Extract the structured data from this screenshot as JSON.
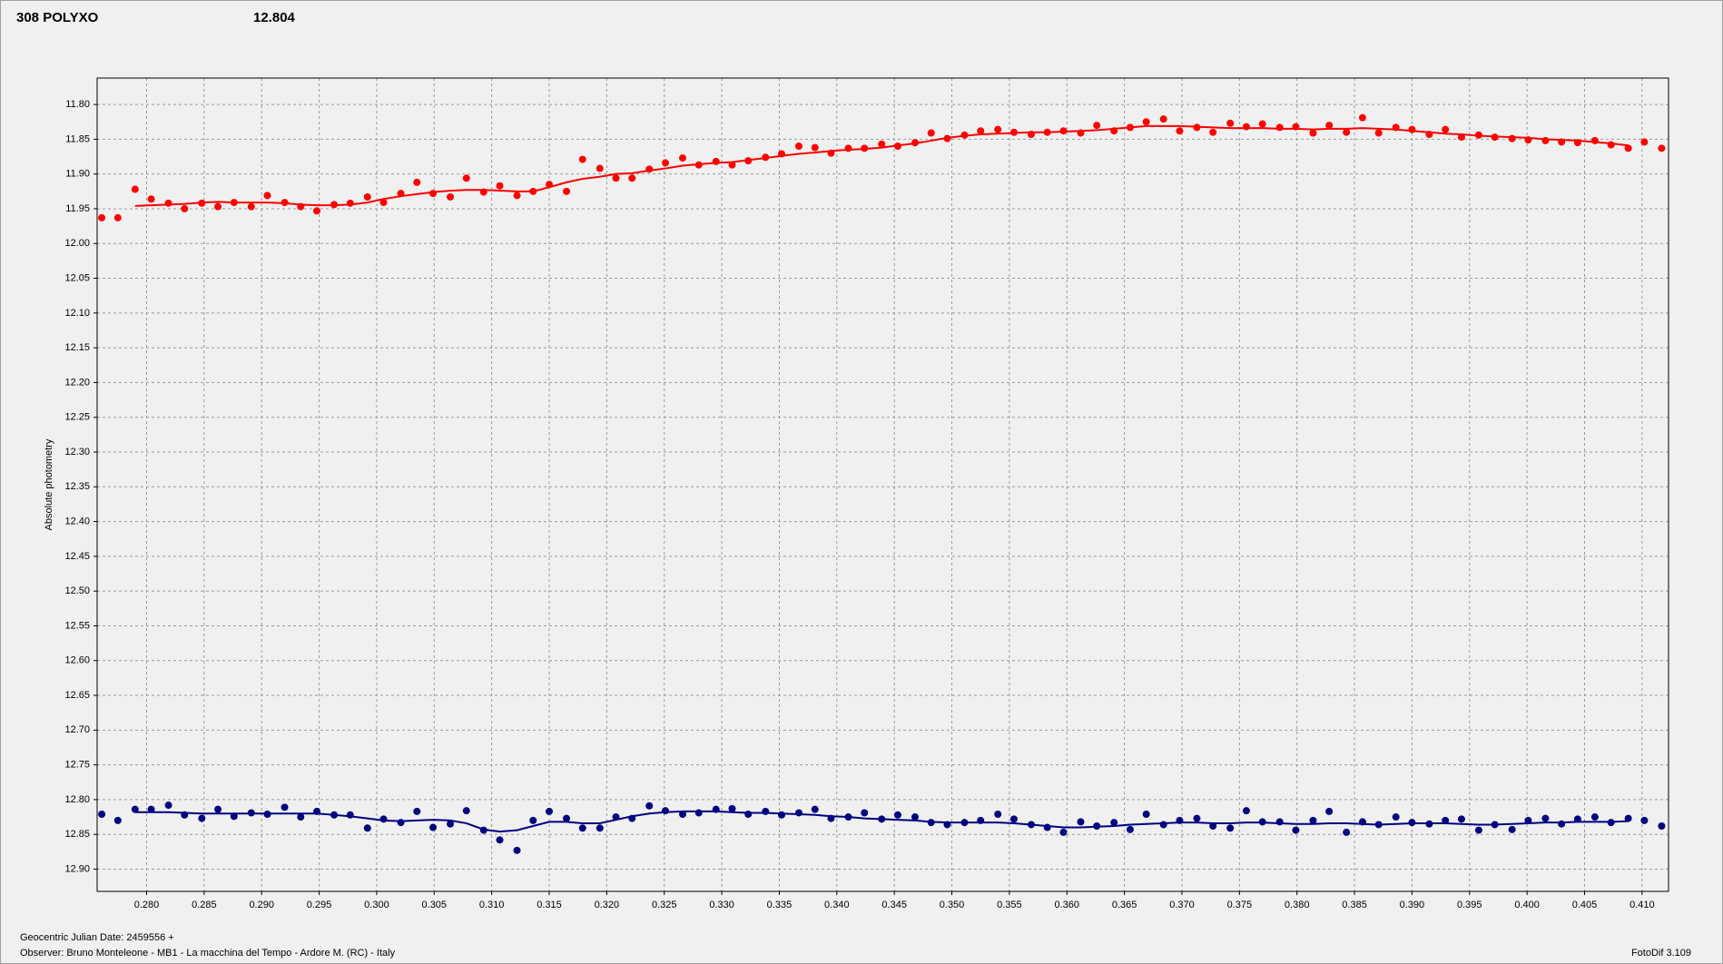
{
  "chart_data": {
    "type": "scatter",
    "title": "308 POLYXO",
    "subtitle": "12.804",
    "ylabel": "Absolute photometry",
    "xlabel": "Geocentric Julian Date: 2459556 +",
    "footer": "Observer: Bruno Monteleone - MB1 - La macchina del Tempo - Ardore M. (RC) - Italy",
    "software": "FotoDif 3.109",
    "title_color": "#ff0000",
    "subtitle_color": "#000080",
    "y_inverted": true,
    "grid": true,
    "xlim": [
      0.2757,
      0.4123
    ],
    "ylim": [
      11.762,
      12.932
    ],
    "xticks": [
      {
        "value": 0.28,
        "label": "0.280"
      },
      {
        "value": 0.285,
        "label": "0.285"
      },
      {
        "value": 0.29,
        "label": "0.290"
      },
      {
        "value": 0.295,
        "label": "0.295"
      },
      {
        "value": 0.3,
        "label": "0.300"
      },
      {
        "value": 0.305,
        "label": "0.305"
      },
      {
        "value": 0.31,
        "label": "0.310"
      },
      {
        "value": 0.315,
        "label": "0.315"
      },
      {
        "value": 0.32,
        "label": "0.320"
      },
      {
        "value": 0.325,
        "label": "0.325"
      },
      {
        "value": 0.33,
        "label": "0.330"
      },
      {
        "value": 0.335,
        "label": "0.335"
      },
      {
        "value": 0.34,
        "label": "0.340"
      },
      {
        "value": 0.345,
        "label": "0.345"
      },
      {
        "value": 0.35,
        "label": "0.350"
      },
      {
        "value": 0.355,
        "label": "0.355"
      },
      {
        "value": 0.36,
        "label": "0.360"
      },
      {
        "value": 0.365,
        "label": "0.365"
      },
      {
        "value": 0.37,
        "label": "0.370"
      },
      {
        "value": 0.375,
        "label": "0.375"
      },
      {
        "value": 0.38,
        "label": "0.380"
      },
      {
        "value": 0.385,
        "label": "0.385"
      },
      {
        "value": 0.39,
        "label": "0.390"
      },
      {
        "value": 0.395,
        "label": "0.395"
      },
      {
        "value": 0.4,
        "label": "0.400"
      },
      {
        "value": 0.405,
        "label": "0.405"
      },
      {
        "value": 0.41,
        "label": "0.410"
      }
    ],
    "yticks": [
      {
        "value": 11.8,
        "label": "11.80"
      },
      {
        "value": 11.85,
        "label": "11.85"
      },
      {
        "value": 11.9,
        "label": "11.90"
      },
      {
        "value": 11.95,
        "label": "11.95"
      },
      {
        "value": 12.0,
        "label": "12.00"
      },
      {
        "value": 12.05,
        "label": "12.05"
      },
      {
        "value": 12.1,
        "label": "12.10"
      },
      {
        "value": 12.15,
        "label": "12.15"
      },
      {
        "value": 12.2,
        "label": "12.20"
      },
      {
        "value": 12.25,
        "label": "12.25"
      },
      {
        "value": 12.3,
        "label": "12.30"
      },
      {
        "value": 12.35,
        "label": "12.35"
      },
      {
        "value": 12.4,
        "label": "12.40"
      },
      {
        "value": 12.45,
        "label": "12.45"
      },
      {
        "value": 12.5,
        "label": "12.50"
      },
      {
        "value": 12.55,
        "label": "12.55"
      },
      {
        "value": 12.6,
        "label": "12.60"
      },
      {
        "value": 12.65,
        "label": "12.65"
      },
      {
        "value": 12.7,
        "label": "12.70"
      },
      {
        "value": 12.75,
        "label": "12.75"
      },
      {
        "value": 12.8,
        "label": "12.80"
      },
      {
        "value": 12.85,
        "label": "12.85"
      },
      {
        "value": 12.9,
        "label": "12.90"
      }
    ],
    "x": [
      0.2761,
      0.2775,
      0.279,
      0.2804,
      0.2819,
      0.2833,
      0.2848,
      0.2862,
      0.2876,
      0.2891,
      0.2905,
      0.292,
      0.2934,
      0.2948,
      0.2963,
      0.2977,
      0.2992,
      0.3006,
      0.3021,
      0.3035,
      0.3049,
      0.3064,
      0.3078,
      0.3093,
      0.3107,
      0.3122,
      0.3136,
      0.315,
      0.3165,
      0.3179,
      0.3194,
      0.3208,
      0.3222,
      0.3237,
      0.3251,
      0.3266,
      0.328,
      0.3295,
      0.3309,
      0.3323,
      0.3338,
      0.3352,
      0.3367,
      0.3381,
      0.3395,
      0.341,
      0.3424,
      0.3439,
      0.3453,
      0.3468,
      0.3482,
      0.3496,
      0.3511,
      0.3525,
      0.354,
      0.3554,
      0.3569,
      0.3583,
      0.3597,
      0.3612,
      0.3626,
      0.3641,
      0.3655,
      0.3669,
      0.3684,
      0.3698,
      0.3713,
      0.3727,
      0.3742,
      0.3756,
      0.377,
      0.3785,
      0.3799,
      0.3814,
      0.3828,
      0.3843,
      0.3857,
      0.3871,
      0.3886,
      0.39,
      0.3915,
      0.3929,
      0.3943,
      0.3958,
      0.3972,
      0.3987,
      0.4001,
      0.4016,
      0.403,
      0.4044,
      0.4059,
      0.4073,
      0.4088,
      0.4102,
      0.4117
    ],
    "series": [
      {
        "color": "#ff0000",
        "values": [
          11.963,
          11.963,
          11.922,
          11.936,
          11.942,
          11.95,
          11.942,
          11.947,
          11.941,
          11.947,
          11.931,
          11.941,
          11.947,
          11.953,
          11.944,
          11.942,
          11.933,
          11.941,
          11.928,
          11.912,
          11.928,
          11.933,
          11.906,
          11.926,
          11.917,
          11.931,
          11.925,
          11.915,
          11.925,
          11.879,
          11.892,
          11.906,
          11.906,
          11.893,
          11.884,
          11.877,
          11.887,
          11.882,
          11.887,
          11.881,
          11.876,
          11.871,
          11.86,
          11.862,
          11.87,
          11.863,
          11.863,
          11.857,
          11.86,
          11.855,
          11.841,
          11.849,
          11.844,
          11.838,
          11.836,
          11.84,
          11.843,
          11.84,
          11.838,
          11.841,
          11.83,
          11.838,
          11.833,
          11.825,
          11.821,
          11.838,
          11.833,
          11.84,
          11.827,
          11.832,
          11.828,
          11.833,
          11.832,
          11.841,
          11.83,
          11.84,
          11.819,
          11.841,
          11.833,
          11.836,
          11.843,
          11.836,
          11.847,
          11.844,
          11.847,
          11.849,
          11.851,
          11.852,
          11.854,
          11.855,
          11.852,
          11.858,
          11.863,
          11.854,
          11.863
        ],
        "fit": [
          null,
          null,
          11.946,
          11.945,
          11.944,
          11.943,
          11.941,
          11.94,
          11.941,
          11.941,
          11.941,
          11.942,
          11.944,
          11.945,
          11.945,
          11.944,
          11.941,
          11.936,
          11.932,
          11.929,
          11.926,
          11.924,
          11.923,
          11.923,
          11.924,
          11.925,
          11.925,
          11.919,
          11.912,
          11.907,
          11.904,
          11.9,
          11.899,
          11.895,
          11.892,
          11.888,
          11.886,
          11.884,
          11.883,
          11.88,
          11.877,
          11.874,
          11.871,
          11.869,
          11.867,
          11.865,
          11.864,
          11.862,
          11.859,
          11.856,
          11.852,
          11.848,
          11.845,
          11.843,
          11.842,
          11.841,
          11.84,
          11.84,
          11.839,
          11.838,
          11.837,
          11.835,
          11.833,
          11.831,
          11.831,
          11.831,
          11.832,
          11.833,
          11.834,
          11.834,
          11.834,
          11.835,
          11.835,
          11.836,
          11.835,
          11.835,
          11.834,
          11.835,
          11.836,
          11.838,
          11.84,
          11.842,
          11.843,
          11.845,
          11.846,
          11.847,
          11.848,
          11.85,
          11.851,
          11.852,
          11.854,
          11.856,
          11.859,
          null,
          null
        ]
      },
      {
        "color": "#000080",
        "values": [
          12.821,
          12.83,
          12.814,
          12.814,
          12.808,
          12.822,
          12.827,
          12.814,
          12.824,
          12.819,
          12.821,
          12.811,
          12.825,
          12.817,
          12.822,
          12.822,
          12.841,
          12.828,
          12.833,
          12.817,
          12.84,
          12.835,
          12.816,
          12.844,
          12.858,
          12.873,
          12.83,
          12.817,
          12.827,
          12.841,
          12.841,
          12.825,
          12.827,
          12.809,
          12.816,
          12.821,
          12.819,
          12.814,
          12.813,
          12.821,
          12.817,
          12.822,
          12.819,
          12.814,
          12.827,
          12.825,
          12.819,
          12.828,
          12.822,
          12.825,
          12.833,
          12.836,
          12.833,
          12.83,
          12.821,
          12.828,
          12.836,
          12.84,
          12.847,
          12.832,
          12.838,
          12.833,
          12.843,
          12.821,
          12.836,
          12.83,
          12.827,
          12.838,
          12.841,
          12.816,
          12.832,
          12.832,
          12.844,
          12.83,
          12.817,
          12.847,
          12.832,
          12.836,
          12.825,
          12.833,
          12.835,
          12.83,
          12.828,
          12.844,
          12.836,
          12.843,
          12.83,
          12.827,
          12.835,
          12.828,
          12.825,
          12.833,
          12.827,
          12.83,
          12.838
        ],
        "fit": [
          null,
          null,
          12.818,
          12.818,
          12.818,
          12.819,
          12.82,
          12.82,
          12.82,
          12.82,
          12.82,
          12.82,
          12.82,
          12.82,
          12.822,
          12.824,
          12.827,
          12.83,
          12.831,
          12.83,
          12.829,
          12.83,
          12.834,
          12.843,
          12.846,
          12.844,
          12.838,
          12.832,
          12.832,
          12.834,
          12.834,
          12.829,
          12.824,
          12.82,
          12.818,
          12.817,
          12.817,
          12.817,
          12.818,
          12.819,
          12.819,
          12.82,
          12.821,
          12.822,
          12.824,
          12.825,
          12.827,
          12.828,
          12.829,
          12.83,
          12.832,
          12.833,
          12.833,
          12.833,
          12.833,
          12.834,
          12.836,
          12.838,
          12.84,
          12.84,
          12.839,
          12.838,
          12.836,
          12.835,
          12.834,
          12.833,
          12.833,
          12.834,
          12.834,
          12.833,
          12.833,
          12.834,
          12.835,
          12.835,
          12.834,
          12.834,
          12.835,
          12.836,
          12.835,
          12.834,
          12.834,
          12.834,
          12.835,
          12.836,
          12.836,
          12.835,
          12.834,
          12.833,
          12.833,
          12.832,
          12.832,
          12.832,
          12.831,
          null,
          null
        ]
      }
    ]
  }
}
